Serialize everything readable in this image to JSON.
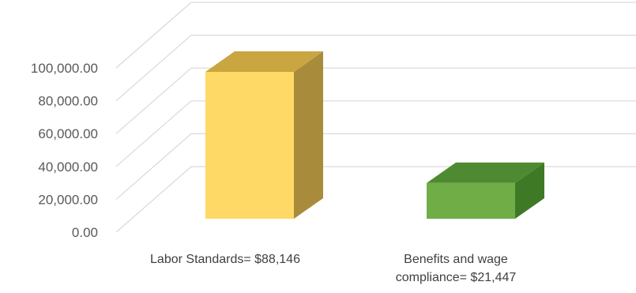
{
  "chart_data": {
    "type": "bar",
    "style": "3d-column",
    "categories": [
      [
        "Labor Standards= $88,146"
      ],
      [
        "Benefits and wage",
        "compliance= $21,447"
      ]
    ],
    "values": [
      88146,
      21447
    ],
    "colors": {
      "bar_front": [
        "#FFD966",
        "#70AD47"
      ],
      "bar_top": [
        "#C9A640",
        "#4E8A31"
      ],
      "bar_side": [
        "#A88C3C",
        "#3E7A26"
      ],
      "gridline": "#D9D9D9",
      "tick_text": "#595959"
    },
    "ylim": [
      0,
      100000
    ],
    "y_ticks": [
      "0.00",
      "20,000.00",
      "40,000.00",
      "60,000.00",
      "80,000.00",
      "100,000.00"
    ],
    "grid": true,
    "legend": "none",
    "title": "",
    "xlabel": "",
    "ylabel": ""
  }
}
